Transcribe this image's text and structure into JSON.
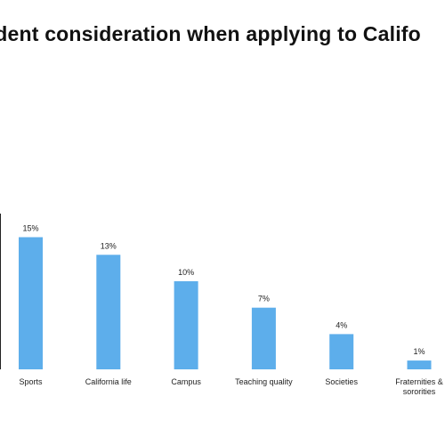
{
  "chart_data": {
    "type": "bar",
    "title": "udent consideration when applying to Califo",
    "xlabel": "",
    "ylabel": "",
    "ylim": [
      0,
      16
    ],
    "grid": false,
    "bar_color": "#5DAEEB",
    "categories": [
      [
        "Sports"
      ],
      [
        "California life"
      ],
      [
        "Campus"
      ],
      [
        "Teaching quality"
      ],
      [
        "Societies"
      ],
      [
        "Fraternities &",
        "sororities"
      ]
    ],
    "values": [
      15,
      13,
      10,
      7,
      4,
      1
    ],
    "value_labels": [
      "15%",
      "13%",
      "10%",
      "7%",
      "4%",
      "1%"
    ]
  }
}
